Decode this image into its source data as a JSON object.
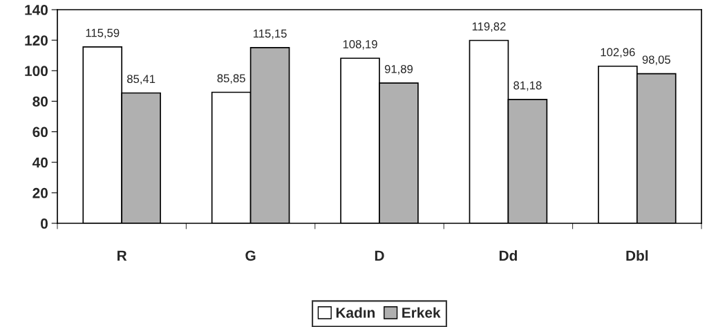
{
  "chart_data": {
    "type": "bar",
    "categories": [
      "R",
      "G",
      "D",
      "Dd",
      "Dbl"
    ],
    "series": [
      {
        "name": "Kadın",
        "color": "#ffffff",
        "values": [
          115.59,
          85.85,
          108.19,
          119.82,
          102.96
        ],
        "value_labels": [
          "115,59",
          "85,85",
          "108,19",
          "119,82",
          "102,96"
        ]
      },
      {
        "name": "Erkek",
        "color": "#b0b0b0",
        "values": [
          85.41,
          115.15,
          91.89,
          81.18,
          98.05
        ],
        "value_labels": [
          "85,41",
          "115,15",
          "91,89",
          "81,18",
          "98,05"
        ]
      }
    ],
    "ylim": [
      0,
      140
    ],
    "yticks": [
      0,
      20,
      40,
      60,
      80,
      100,
      120,
      140
    ],
    "grid": false,
    "legend": "bottom"
  }
}
